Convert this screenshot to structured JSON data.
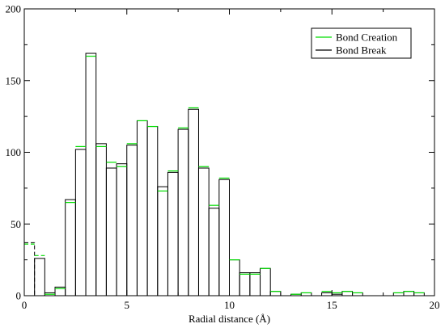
{
  "chart_data": {
    "type": "bar",
    "xlabel": "Radial distance (Å)",
    "ylabel": "",
    "xlim": [
      0,
      20
    ],
    "ylim": [
      0,
      200
    ],
    "xticks": [
      0,
      5,
      10,
      15,
      20
    ],
    "yticks": [
      0,
      50,
      100,
      150,
      200
    ],
    "bin_width": 0.5,
    "bin_starts": [
      0,
      0.5,
      1,
      1.5,
      2,
      2.5,
      3,
      3.5,
      4,
      4.5,
      5,
      5.5,
      6,
      6.5,
      7,
      7.5,
      8,
      8.5,
      9,
      9.5,
      10,
      10.5,
      11,
      11.5,
      12,
      12.5,
      13,
      13.5,
      14,
      14.5,
      15,
      15.5,
      16,
      16.5,
      17,
      17.5,
      18,
      18.5,
      19
    ],
    "legend_position": "top-right",
    "grid": false,
    "series": [
      {
        "name": "Bond Creation",
        "color": "#00dd00",
        "style": "step",
        "values": [
          36,
          28,
          1,
          5,
          65,
          104,
          167,
          104,
          93,
          90,
          106,
          122,
          118,
          73,
          87,
          117,
          131,
          90,
          63,
          82,
          25,
          15,
          15,
          19,
          3,
          0,
          1,
          2,
          0,
          3,
          2,
          3,
          2,
          0,
          0,
          0,
          2,
          3,
          2
        ]
      },
      {
        "name": "Bond Break",
        "color": "#000000",
        "style": "bar",
        "values": [
          37,
          26,
          2,
          6,
          67,
          102,
          169,
          106,
          89,
          92,
          105,
          122,
          118,
          76,
          86,
          116,
          130,
          89,
          61,
          81,
          25,
          16,
          16,
          19,
          3,
          0,
          1,
          2,
          0,
          2,
          1,
          3,
          2,
          0,
          0,
          0,
          2,
          3,
          2
        ]
      }
    ]
  },
  "legend": {
    "entries": [
      "Bond Creation",
      "Bond Break"
    ]
  }
}
